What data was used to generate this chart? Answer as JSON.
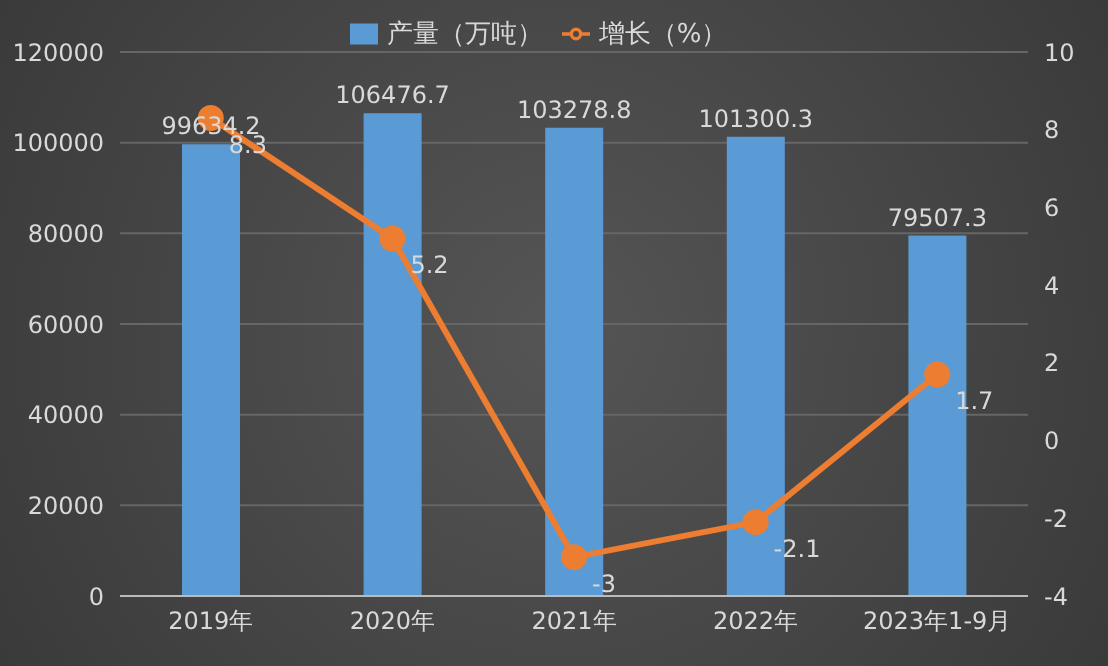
{
  "chart_data": {
    "type": "bar",
    "categories": [
      "2019年",
      "2020年",
      "2021年",
      "2022年",
      "2023年1-9月"
    ],
    "series": [
      {
        "name": "产量（万吨）",
        "color": "#5b9bd5",
        "values": [
          99634.2,
          106476.7,
          103278.8,
          101300.3,
          79507.3
        ]
      },
      {
        "name": "增长（%）",
        "type": "line",
        "axis": "y2",
        "color": "#ed7d31",
        "values": [
          8.3,
          5.2,
          -3,
          -2.1,
          1.7
        ]
      }
    ],
    "ylim": [
      0,
      120000
    ],
    "yticks": [
      0,
      20000,
      40000,
      60000,
      80000,
      100000,
      120000
    ],
    "y2lim": [
      -4,
      10
    ],
    "y2ticks": [
      -4,
      -2,
      0,
      2,
      4,
      6,
      8,
      10
    ],
    "grid": "y",
    "legend": "top",
    "marker": "circle",
    "data_labels": true
  }
}
